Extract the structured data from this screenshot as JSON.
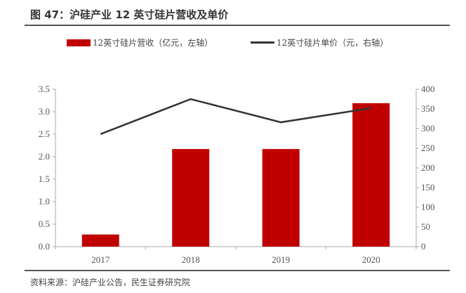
{
  "title": "图 47：沪硅产业 12 英寸硅片营收及单价",
  "source": "资料来源：沪硅产业公告，民生证券研究院",
  "chart_data": {
    "type": "bar+line",
    "categories": [
      "2017",
      "2018",
      "2019",
      "2020"
    ],
    "series": [
      {
        "name": "12英寸硅片营收（亿元，左轴）",
        "type": "bar",
        "axis": "left",
        "color": "#c00000",
        "values": [
          0.27,
          2.17,
          2.17,
          3.19
        ]
      },
      {
        "name": "12英寸硅片单价（元，右轴）",
        "type": "line",
        "axis": "right",
        "color": "#333333",
        "values": [
          286,
          375,
          316,
          352
        ]
      }
    ],
    "left_axis": {
      "ylim": [
        0,
        3.5
      ],
      "ticks": [
        "0.0",
        "0.5",
        "1.0",
        "1.5",
        "2.0",
        "2.5",
        "3.0",
        "3.5"
      ]
    },
    "right_axis": {
      "ylim": [
        0,
        400
      ],
      "ticks": [
        "0",
        "50",
        "100",
        "150",
        "200",
        "250",
        "300",
        "350",
        "400"
      ]
    },
    "legend": "top",
    "grid": false
  }
}
